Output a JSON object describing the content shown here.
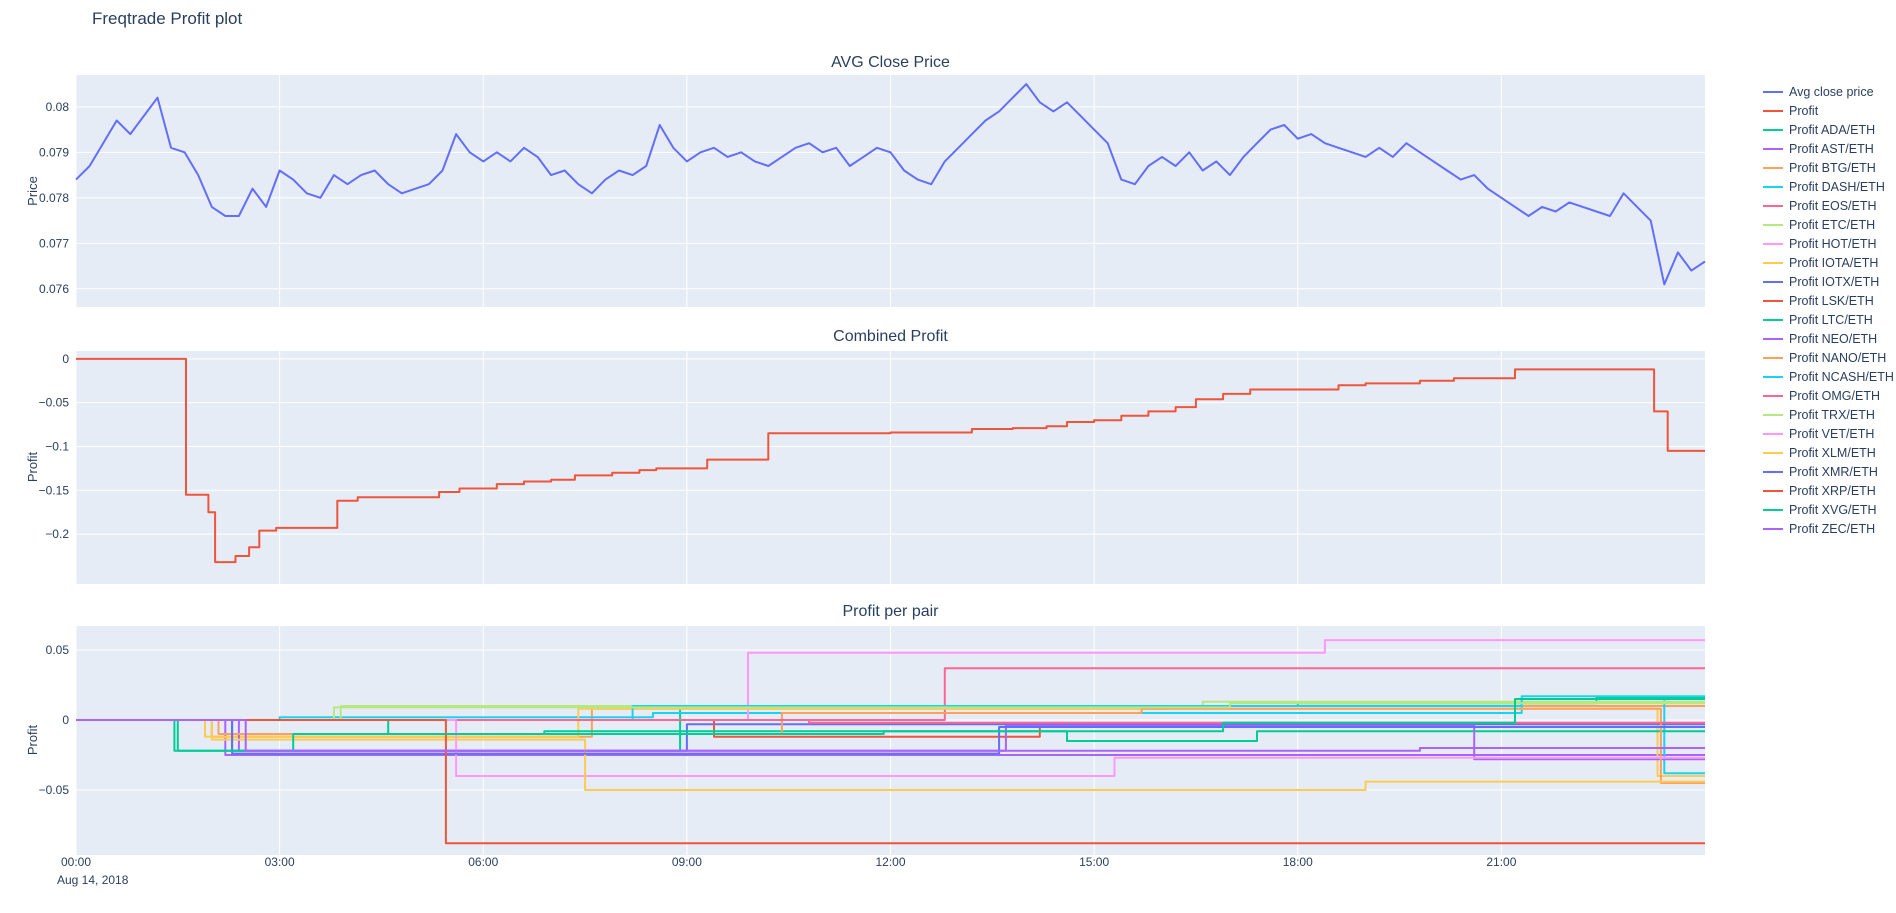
{
  "page": {
    "title": "Freqtrade Profit plot"
  },
  "style": {
    "plot_bg": "#e5ecf6",
    "grid_color": "#ffffff",
    "text_color": "#2a3f5f"
  },
  "xaxis": {
    "xlim": [
      0,
      24
    ],
    "ticks": [
      {
        "v": 0,
        "label": "00:00"
      },
      {
        "v": 3,
        "label": "03:00"
      },
      {
        "v": 6,
        "label": "06:00"
      },
      {
        "v": 9,
        "label": "09:00"
      },
      {
        "v": 12,
        "label": "12:00"
      },
      {
        "v": 15,
        "label": "15:00"
      },
      {
        "v": 18,
        "label": "18:00"
      },
      {
        "v": 21,
        "label": "21:00"
      }
    ],
    "sub_label": "Aug 14, 2018"
  },
  "chart_data": [
    {
      "type": "line",
      "title": "AVG Close Price",
      "ylabel": "Price",
      "ylim": [
        0.0756,
        0.0807
      ],
      "yticks": [
        {
          "v": 0.08,
          "label": "0.08"
        },
        {
          "v": 0.079,
          "label": "0.079"
        },
        {
          "v": 0.078,
          "label": "0.078"
        },
        {
          "v": 0.077,
          "label": "0.077"
        },
        {
          "v": 0.076,
          "label": "0.076"
        }
      ],
      "x0": 0,
      "dx": 0.2,
      "series": [
        {
          "name": "Avg close price",
          "color": "#636EFA",
          "values": [
            0.0784,
            0.0787,
            0.0792,
            0.0797,
            0.0794,
            0.0798,
            0.0802,
            0.0791,
            0.079,
            0.0785,
            0.0778,
            0.0776,
            0.0776,
            0.0782,
            0.0778,
            0.0786,
            0.0784,
            0.0781,
            0.078,
            0.0785,
            0.0783,
            0.0785,
            0.0786,
            0.0783,
            0.0781,
            0.0782,
            0.0783,
            0.0786,
            0.0794,
            0.079,
            0.0788,
            0.079,
            0.0788,
            0.0791,
            0.0789,
            0.0785,
            0.0786,
            0.0783,
            0.0781,
            0.0784,
            0.0786,
            0.0785,
            0.0787,
            0.0796,
            0.0791,
            0.0788,
            0.079,
            0.0791,
            0.0789,
            0.079,
            0.0788,
            0.0787,
            0.0789,
            0.0791,
            0.0792,
            0.079,
            0.0791,
            0.0787,
            0.0789,
            0.0791,
            0.079,
            0.0786,
            0.0784,
            0.0783,
            0.0788,
            0.0791,
            0.0794,
            0.0797,
            0.0799,
            0.0802,
            0.0805,
            0.0801,
            0.0799,
            0.0801,
            0.0798,
            0.0795,
            0.0792,
            0.0784,
            0.0783,
            0.0787,
            0.0789,
            0.0787,
            0.079,
            0.0786,
            0.0788,
            0.0785,
            0.0789,
            0.0792,
            0.0795,
            0.0796,
            0.0793,
            0.0794,
            0.0792,
            0.0791,
            0.079,
            0.0789,
            0.0791,
            0.0789,
            0.0792,
            0.079,
            0.0788,
            0.0786,
            0.0784,
            0.0785,
            0.0782,
            0.078,
            0.0778,
            0.0776,
            0.0778,
            0.0777,
            0.0779,
            0.0778,
            0.0777,
            0.0776,
            0.0781,
            0.0778,
            0.0775,
            0.0761,
            0.0768,
            0.0764,
            0.0766
          ]
        }
      ]
    },
    {
      "type": "line",
      "step": true,
      "title": "Combined Profit",
      "ylabel": "Profit",
      "ylim": [
        -0.257,
        0.009
      ],
      "yticks": [
        {
          "v": 0,
          "label": "0"
        },
        {
          "v": -0.05,
          "label": "−0.05"
        },
        {
          "v": -0.1,
          "label": "−0.1"
        },
        {
          "v": -0.15,
          "label": "−0.15"
        },
        {
          "v": -0.2,
          "label": "−0.2"
        }
      ],
      "series": [
        {
          "name": "Profit",
          "color": "#EF553B",
          "points": [
            [
              0,
              0
            ],
            [
              1.62,
              -0.155
            ],
            [
              1.95,
              -0.175
            ],
            [
              2.05,
              -0.232
            ],
            [
              2.35,
              -0.225
            ],
            [
              2.55,
              -0.215
            ],
            [
              2.7,
              -0.196
            ],
            [
              2.95,
              -0.193
            ],
            [
              3.85,
              -0.162
            ],
            [
              4.15,
              -0.158
            ],
            [
              5.35,
              -0.152
            ],
            [
              5.65,
              -0.148
            ],
            [
              6.2,
              -0.143
            ],
            [
              6.6,
              -0.14
            ],
            [
              7.0,
              -0.138
            ],
            [
              7.35,
              -0.133
            ],
            [
              7.9,
              -0.13
            ],
            [
              8.3,
              -0.127
            ],
            [
              8.55,
              -0.125
            ],
            [
              9.3,
              -0.115
            ],
            [
              10.2,
              -0.085
            ],
            [
              12.0,
              -0.084
            ],
            [
              13.2,
              -0.08
            ],
            [
              13.8,
              -0.079
            ],
            [
              14.3,
              -0.077
            ],
            [
              14.6,
              -0.072
            ],
            [
              15.0,
              -0.07
            ],
            [
              15.4,
              -0.065
            ],
            [
              15.8,
              -0.06
            ],
            [
              16.2,
              -0.055
            ],
            [
              16.5,
              -0.046
            ],
            [
              16.9,
              -0.04
            ],
            [
              17.3,
              -0.035
            ],
            [
              18.6,
              -0.03
            ],
            [
              19.0,
              -0.028
            ],
            [
              19.8,
              -0.025
            ],
            [
              20.3,
              -0.022
            ],
            [
              21.2,
              -0.012
            ],
            [
              23.25,
              -0.06
            ],
            [
              23.45,
              -0.105
            ],
            [
              24,
              -0.105
            ]
          ]
        }
      ]
    },
    {
      "type": "line",
      "step": true,
      "title": "Profit per pair",
      "ylabel": "Profit",
      "ylim": [
        -0.0964,
        0.0671
      ],
      "yticks": [
        {
          "v": 0.05,
          "label": "0.05"
        },
        {
          "v": 0,
          "label": "0"
        },
        {
          "v": -0.05,
          "label": "−0.05"
        }
      ],
      "series": [
        {
          "name": "Profit ADA/ETH",
          "color": "#00CC96",
          "points": [
            [
              0,
              0
            ],
            [
              1.45,
              -0.022
            ],
            [
              8.9,
              0.01
            ],
            [
              18.0,
              0.012
            ],
            [
              22.4,
              0.016
            ],
            [
              24,
              0.016
            ]
          ]
        },
        {
          "name": "Profit AST/ETH",
          "color": "#AB63FA",
          "points": [
            [
              0,
              0
            ],
            [
              2.2,
              -0.025
            ],
            [
              24,
              -0.025
            ]
          ]
        },
        {
          "name": "Profit BTG/ETH",
          "color": "#FFA15A",
          "points": [
            [
              0,
              0
            ],
            [
              2.0,
              -0.012
            ],
            [
              7.6,
              0.008
            ],
            [
              16.1,
              0.01
            ],
            [
              24,
              0.01
            ]
          ]
        },
        {
          "name": "Profit DASH/ETH",
          "color": "#19D3F3",
          "points": [
            [
              0,
              0
            ],
            [
              3.0,
              0.002
            ],
            [
              8.5,
              0.005
            ],
            [
              21.3,
              0.015
            ],
            [
              23.4,
              -0.038
            ],
            [
              24,
              -0.038
            ]
          ]
        },
        {
          "name": "Profit EOS/ETH",
          "color": "#FF6692",
          "points": [
            [
              0,
              0
            ],
            [
              12.8,
              0.037
            ],
            [
              24,
              0.037
            ]
          ]
        },
        {
          "name": "Profit ETC/ETH",
          "color": "#B6E880",
          "points": [
            [
              0,
              0
            ],
            [
              3.9,
              0.01
            ],
            [
              16.6,
              0.013
            ],
            [
              24,
              0.013
            ]
          ]
        },
        {
          "name": "Profit HOT/ETH",
          "color": "#FF97FF",
          "points": [
            [
              0,
              0
            ],
            [
              9.9,
              0.048
            ],
            [
              18.4,
              0.057
            ],
            [
              24,
              0.057
            ]
          ]
        },
        {
          "name": "Profit IOTA/ETH",
          "color": "#FECB52",
          "points": [
            [
              0,
              0
            ],
            [
              1.9,
              -0.012
            ],
            [
              7.4,
              0.008
            ],
            [
              23.3,
              -0.04
            ],
            [
              24,
              -0.04
            ]
          ]
        },
        {
          "name": "Profit IOTX/ETH",
          "color": "#636EFA",
          "points": [
            [
              0,
              0
            ],
            [
              2.3,
              -0.022
            ],
            [
              9.0,
              -0.003
            ],
            [
              24,
              -0.003
            ]
          ]
        },
        {
          "name": "Profit LSK/ETH",
          "color": "#EF553B",
          "points": [
            [
              0,
              0
            ],
            [
              9.4,
              -0.012
            ],
            [
              14.2,
              -0.005
            ],
            [
              24,
              -0.005
            ]
          ]
        },
        {
          "name": "Profit LTC/ETH",
          "color": "#00CC96",
          "points": [
            [
              0,
              0
            ],
            [
              4.6,
              -0.01
            ],
            [
              6.9,
              -0.008
            ],
            [
              14.6,
              -0.015
            ],
            [
              17.4,
              -0.008
            ],
            [
              24,
              -0.008
            ]
          ]
        },
        {
          "name": "Profit NEO/ETH",
          "color": "#AB63FA",
          "points": [
            [
              0,
              0
            ],
            [
              2.4,
              -0.022
            ],
            [
              13.7,
              -0.004
            ],
            [
              20.6,
              -0.028
            ],
            [
              24,
              -0.028
            ]
          ]
        },
        {
          "name": "Profit NANO/ETH",
          "color": "#FFA15A",
          "points": [
            [
              0,
              0
            ],
            [
              2.1,
              -0.01
            ],
            [
              10.4,
              0.005
            ],
            [
              15.7,
              0.008
            ],
            [
              23.35,
              -0.045
            ],
            [
              24,
              -0.045
            ]
          ]
        },
        {
          "name": "Profit NCASH/ETH",
          "color": "#19D3F3",
          "points": [
            [
              0,
              0
            ],
            [
              8.2,
              0.01
            ],
            [
              21.3,
              0.017
            ],
            [
              24,
              0.017
            ]
          ]
        },
        {
          "name": "Profit OMG/ETH",
          "color": "#FF6692",
          "points": [
            [
              0,
              0
            ],
            [
              10.8,
              -0.002
            ],
            [
              24,
              -0.002
            ]
          ]
        },
        {
          "name": "Profit TRX/ETH",
          "color": "#B6E880",
          "points": [
            [
              0,
              0
            ],
            [
              3.8,
              0.009
            ],
            [
              17.0,
              0.012
            ],
            [
              24,
              0.012
            ]
          ]
        },
        {
          "name": "Profit VET/ETH",
          "color": "#FF97FF",
          "points": [
            [
              0,
              0
            ],
            [
              5.6,
              -0.04
            ],
            [
              15.3,
              -0.027
            ],
            [
              24,
              -0.027
            ]
          ]
        },
        {
          "name": "Profit XLM/ETH",
          "color": "#FECB52",
          "points": [
            [
              0,
              0
            ],
            [
              2.0,
              -0.014
            ],
            [
              7.5,
              -0.05
            ],
            [
              19.0,
              -0.044
            ],
            [
              24,
              -0.044
            ]
          ]
        },
        {
          "name": "Profit XMR/ETH",
          "color": "#636EFA",
          "points": [
            [
              0,
              0
            ],
            [
              2.3,
              -0.024
            ],
            [
              13.6,
              -0.005
            ],
            [
              24,
              -0.005
            ]
          ]
        },
        {
          "name": "Profit XRP/ETH",
          "color": "#EF553B",
          "points": [
            [
              0,
              0
            ],
            [
              5.45,
              -0.088
            ],
            [
              24,
              -0.088
            ]
          ]
        },
        {
          "name": "Profit XVG/ETH",
          "color": "#00CC96",
          "points": [
            [
              0,
              0
            ],
            [
              1.5,
              -0.022
            ],
            [
              3.2,
              -0.01
            ],
            [
              11.9,
              -0.008
            ],
            [
              16.9,
              -0.002
            ],
            [
              21.2,
              0.015
            ],
            [
              24,
              0.015
            ]
          ]
        },
        {
          "name": "Profit ZEC/ETH",
          "color": "#AB63FA",
          "points": [
            [
              0,
              0
            ],
            [
              2.5,
              -0.022
            ],
            [
              19.8,
              -0.02
            ],
            [
              24,
              -0.02
            ]
          ]
        }
      ]
    }
  ],
  "legend": [
    {
      "label": "Avg close price",
      "color": "#636EFA"
    },
    {
      "label": "Profit",
      "color": "#EF553B"
    },
    {
      "label": "Profit ADA/ETH",
      "color": "#00CC96"
    },
    {
      "label": "Profit AST/ETH",
      "color": "#AB63FA"
    },
    {
      "label": "Profit BTG/ETH",
      "color": "#FFA15A"
    },
    {
      "label": "Profit DASH/ETH",
      "color": "#19D3F3"
    },
    {
      "label": "Profit EOS/ETH",
      "color": "#FF6692"
    },
    {
      "label": "Profit ETC/ETH",
      "color": "#B6E880"
    },
    {
      "label": "Profit HOT/ETH",
      "color": "#FF97FF"
    },
    {
      "label": "Profit IOTA/ETH",
      "color": "#FECB52"
    },
    {
      "label": "Profit IOTX/ETH",
      "color": "#636EFA"
    },
    {
      "label": "Profit LSK/ETH",
      "color": "#EF553B"
    },
    {
      "label": "Profit LTC/ETH",
      "color": "#00CC96"
    },
    {
      "label": "Profit NEO/ETH",
      "color": "#AB63FA"
    },
    {
      "label": "Profit NANO/ETH",
      "color": "#FFA15A"
    },
    {
      "label": "Profit NCASH/ETH",
      "color": "#19D3F3"
    },
    {
      "label": "Profit OMG/ETH",
      "color": "#FF6692"
    },
    {
      "label": "Profit TRX/ETH",
      "color": "#B6E880"
    },
    {
      "label": "Profit VET/ETH",
      "color": "#FF97FF"
    },
    {
      "label": "Profit XLM/ETH",
      "color": "#FECB52"
    },
    {
      "label": "Profit XMR/ETH",
      "color": "#636EFA"
    },
    {
      "label": "Profit XRP/ETH",
      "color": "#EF553B"
    },
    {
      "label": "Profit XVG/ETH",
      "color": "#00CC96"
    },
    {
      "label": "Profit ZEC/ETH",
      "color": "#AB63FA"
    }
  ]
}
